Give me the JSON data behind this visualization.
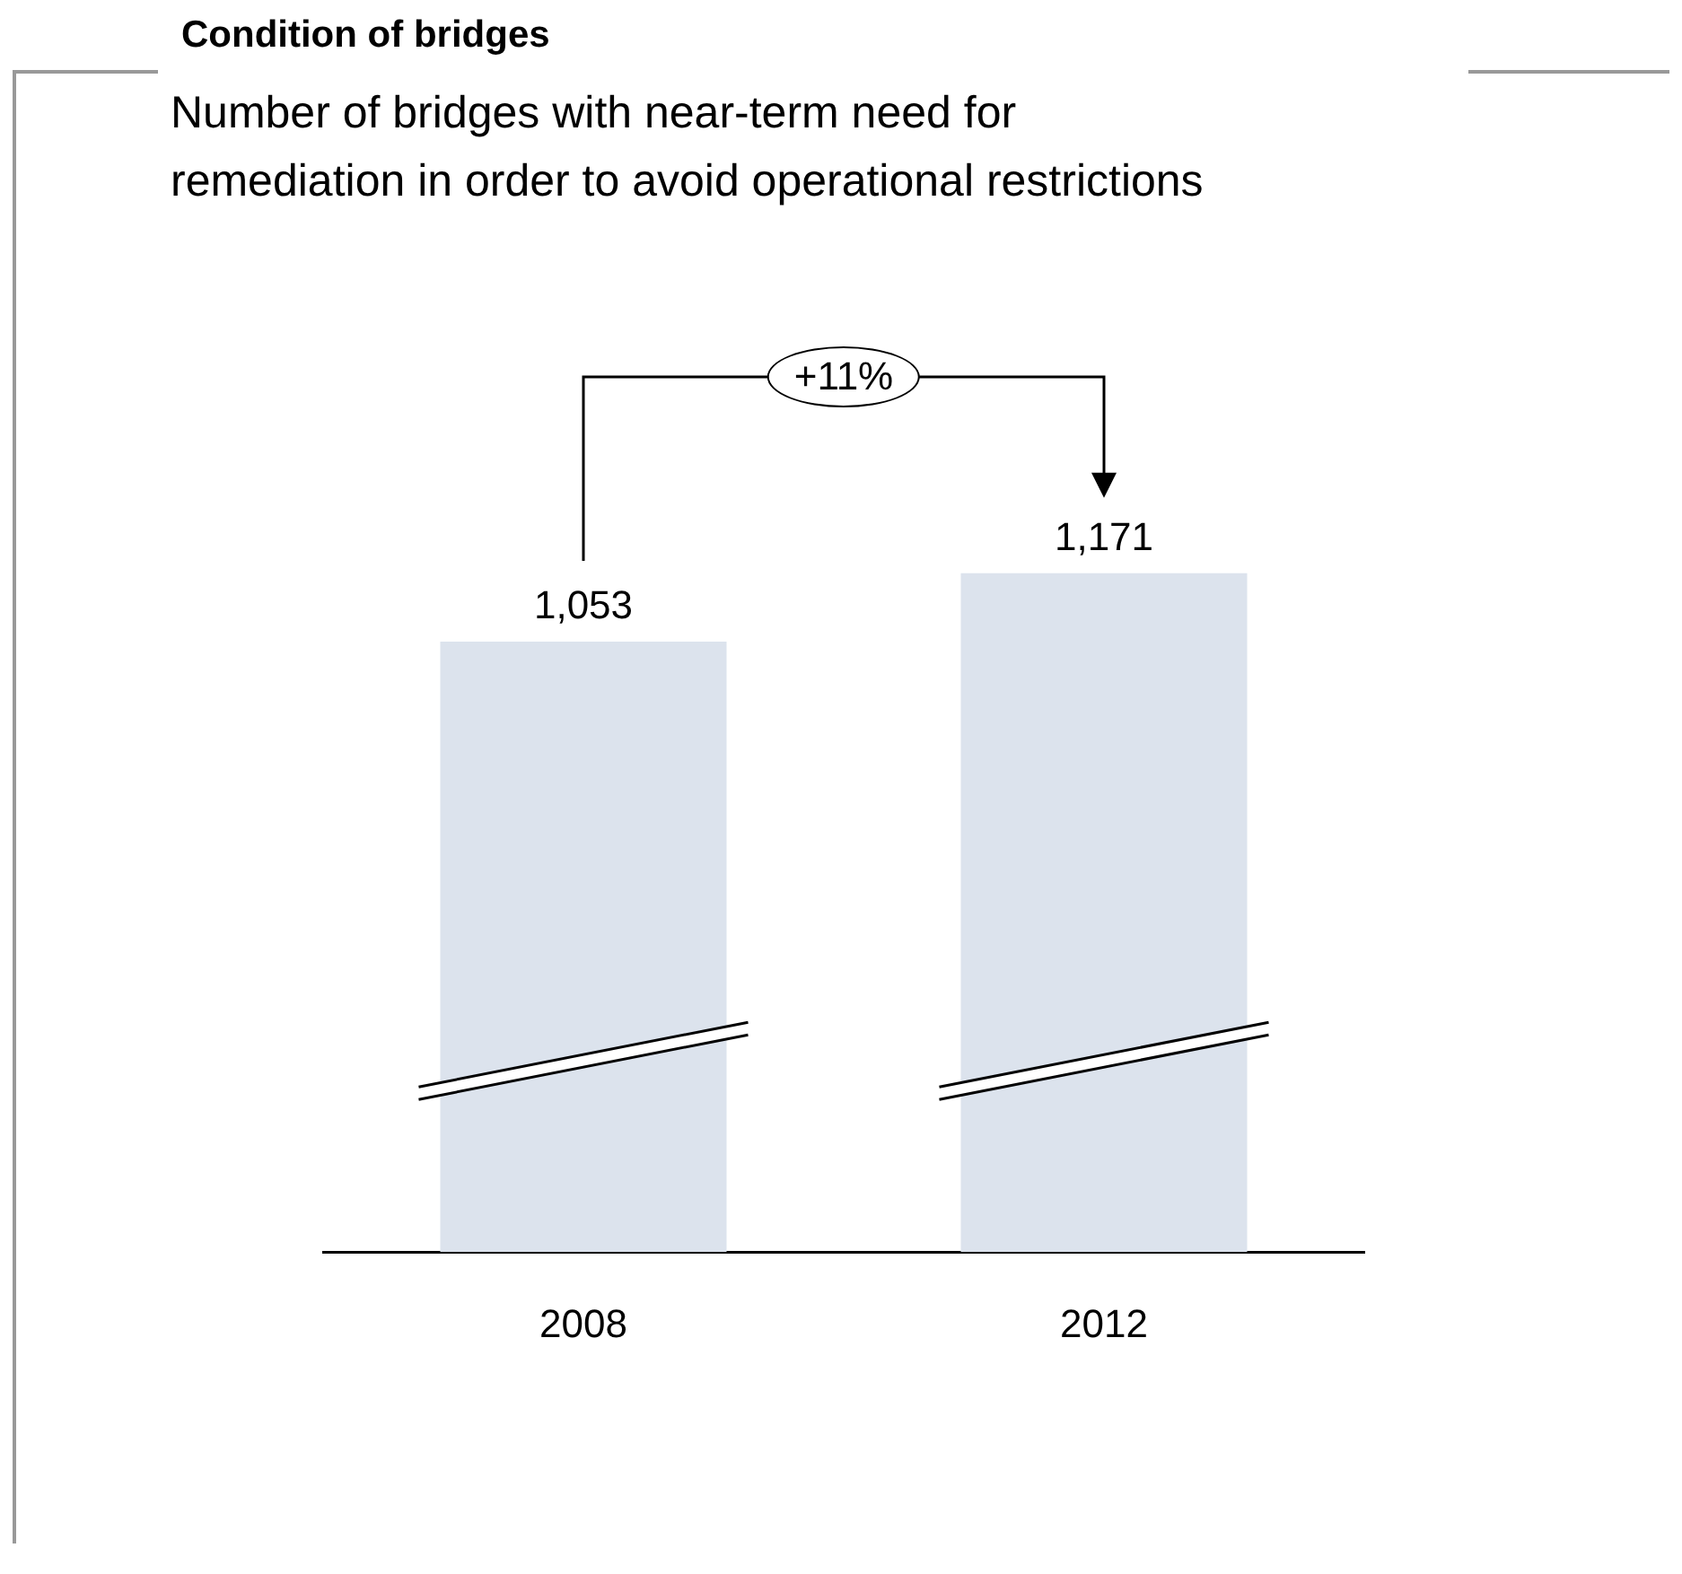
{
  "chart_data": {
    "type": "bar",
    "title": "Condition of bridges",
    "subtitle": "Number of bridges with near-term need for\nremediation in order to avoid operational restrictions",
    "categories": [
      "2008",
      "2012"
    ],
    "values": [
      1053,
      1171
    ],
    "color": "#dce3ed",
    "value_labels": [
      "1,053",
      "1,171"
    ],
    "grid": false,
    "legend": false,
    "annotations": [
      "+11%"
    ]
  }
}
